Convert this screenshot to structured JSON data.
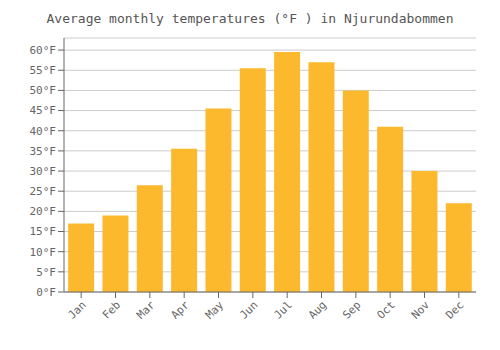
{
  "chart_data": {
    "type": "bar",
    "title": "Average monthly temperatures (°F ) in Njurundabommen",
    "categories": [
      "Jan",
      "Feb",
      "Mar",
      "Apr",
      "May",
      "Jun",
      "Jul",
      "Aug",
      "Sep",
      "Oct",
      "Nov",
      "Dec"
    ],
    "values": [
      17,
      19,
      26.5,
      35.5,
      45.5,
      55.5,
      59.5,
      57,
      50,
      41,
      30,
      22
    ],
    "color": "#FDB92E",
    "ylim": [
      0,
      63
    ],
    "yticks": [
      {
        "value": 0,
        "label": "0°F"
      },
      {
        "value": 5,
        "label": "5°F"
      },
      {
        "value": 10,
        "label": "10°F"
      },
      {
        "value": 15,
        "label": "15°F"
      },
      {
        "value": 20,
        "label": "20°F"
      },
      {
        "value": 25,
        "label": "25°F"
      },
      {
        "value": 30,
        "label": "30°F"
      },
      {
        "value": 35,
        "label": "35°F"
      },
      {
        "value": 40,
        "label": "40°F"
      },
      {
        "value": 45,
        "label": "45°F"
      },
      {
        "value": 50,
        "label": "50°F"
      },
      {
        "value": 55,
        "label": "55°F"
      },
      {
        "value": 60,
        "label": "60°F"
      }
    ],
    "grid": true
  }
}
